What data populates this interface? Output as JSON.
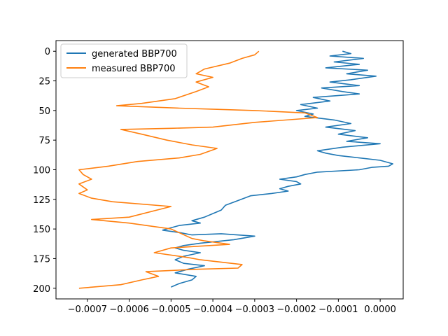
{
  "chart_data": {
    "type": "line",
    "title": "",
    "xlabel": "",
    "ylabel": "",
    "xlim": [
      -0.000775,
      5.5e-05
    ],
    "ylim": [
      209,
      -9
    ],
    "y_inverted": true,
    "grid": false,
    "legend_placement": "upper-left",
    "x_ticks": [
      -0.0007,
      -0.0006,
      -0.0005,
      -0.0004,
      -0.0003,
      -0.0002,
      -0.0001,
      0.0
    ],
    "x_tick_labels": [
      "−0.0007",
      "−0.0006",
      "−0.0005",
      "−0.0004",
      "−0.0003",
      "−0.0002",
      "−0.0001",
      "0.0000"
    ],
    "y_ticks": [
      0,
      25,
      50,
      75,
      100,
      125,
      150,
      175,
      200
    ],
    "y_tick_labels": [
      "0",
      "25",
      "50",
      "75",
      "100",
      "125",
      "150",
      "175",
      "200"
    ],
    "series": [
      {
        "name": "generated BBP700",
        "color": "#1f77b4",
        "x": [
          -9e-05,
          -7e-05,
          -0.00012,
          -4e-05,
          -0.00011,
          -5e-05,
          -0.00013,
          -3e-05,
          -8e-05,
          -1e-05,
          -7e-05,
          -0.00012,
          -5e-05,
          -0.00014,
          -9e-05,
          -5e-05,
          -0.00016,
          -0.00012,
          -0.00019,
          -0.00015,
          -0.0002,
          -0.00016,
          -0.00018,
          -0.00011,
          -7e-05,
          -0.00013,
          -6e-05,
          -0.0001,
          -3e-05,
          -8e-05,
          0.0,
          -9e-05,
          -0.00015,
          -0.00013,
          -0.0001,
          -5e-05,
          0.0,
          3e-05,
          2e-05,
          -2e-05,
          -5e-05,
          -0.00015,
          -0.00018,
          -0.0002,
          -0.00024,
          -0.0002,
          -0.00019,
          -0.00022,
          -0.00024,
          -0.00022,
          -0.00026,
          -0.00031,
          -0.00034,
          -0.00037,
          -0.00038,
          -0.0004,
          -0.00042,
          -0.00045,
          -0.00043,
          -0.00048,
          -0.0005,
          -0.00052,
          -0.00048,
          -0.00045,
          -0.00038,
          -0.0003,
          -0.00035,
          -0.00043,
          -0.00047,
          -0.00049,
          -0.00047,
          -0.00043,
          -0.00047,
          -0.00049,
          -0.00047,
          -0.00042,
          -0.00046,
          -0.00049,
          -0.00044,
          -0.00045,
          -0.00048,
          -0.0005
        ],
        "y": [
          0,
          2,
          4,
          6,
          9,
          11,
          14,
          16,
          19,
          21,
          24,
          26,
          29,
          31,
          34,
          36,
          39,
          42,
          45,
          48,
          50,
          53,
          55,
          58,
          61,
          64,
          67,
          70,
          73,
          76,
          78,
          81,
          84,
          86,
          88,
          90,
          92,
          95,
          97,
          98,
          100,
          102,
          104,
          106,
          108,
          110,
          112,
          114,
          116,
          118,
          120,
          122,
          126,
          130,
          134,
          137,
          140,
          143,
          145,
          147,
          149,
          151,
          153,
          155,
          154,
          156,
          159,
          162,
          164,
          166,
          168,
          170,
          173,
          176,
          179,
          181,
          184,
          187,
          190,
          193,
          196,
          199
        ]
      },
      {
        "name": "measured BBP700",
        "color": "#ff7f0e",
        "x": [
          -0.00029,
          -0.0003,
          -0.00033,
          -0.00036,
          -0.00042,
          -0.00044,
          -0.0004,
          -0.00044,
          -0.00041,
          -0.00044,
          -0.00049,
          -0.00057,
          -0.00063,
          -0.00048,
          -0.00039,
          -0.0003,
          -0.00018,
          -0.00015,
          -0.0003,
          -0.0004,
          -0.0005,
          -0.00062,
          -0.00057,
          -0.00051,
          -0.00045,
          -0.00039,
          -0.00043,
          -0.00048,
          -0.00058,
          -0.00065,
          -0.00072,
          -0.00071,
          -0.00069,
          -0.00072,
          -0.0007,
          -0.00072,
          -0.00069,
          -0.00064,
          -0.0005,
          -0.0006,
          -0.00069,
          -0.0006,
          -0.0005,
          -0.00045,
          -0.00042,
          -0.00036,
          -0.0005,
          -0.00054,
          -0.00046,
          -0.00043,
          -0.00033,
          -0.00034,
          -0.00044,
          -0.00056,
          -0.00053,
          -0.00057,
          -0.00062,
          -0.00072
        ],
        "y": [
          0,
          3,
          6,
          10,
          15,
          19,
          22,
          26,
          30,
          34,
          40,
          44,
          46,
          48,
          49,
          50,
          52,
          56,
          60,
          64,
          65,
          66,
          70,
          75,
          79,
          82,
          87,
          90,
          93,
          97,
          100,
          104,
          108,
          112,
          117,
          120,
          124,
          127,
          131,
          140,
          142,
          145,
          150,
          158,
          160,
          163,
          166,
          170,
          174,
          176,
          180,
          183,
          184,
          186,
          190,
          193,
          197,
          200
        ]
      }
    ]
  }
}
